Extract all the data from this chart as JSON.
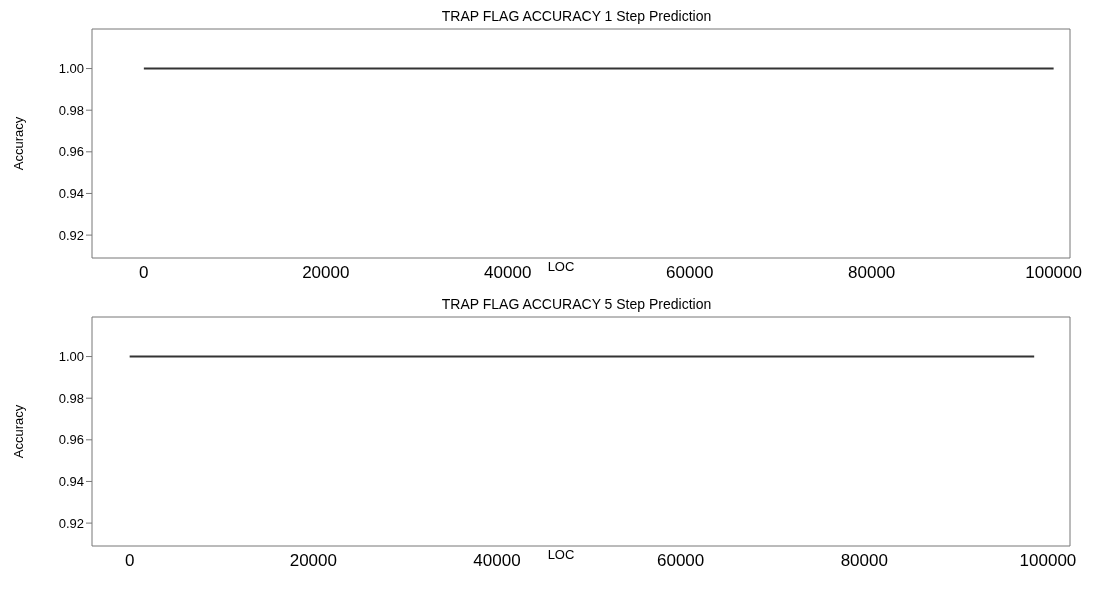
{
  "chart_data": [
    {
      "type": "line",
      "title": "TRAP FLAG ACCURACY 1 Step Prediction",
      "xlabel": "LOC",
      "ylabel": "Accuracy",
      "x": [
        0,
        100000
      ],
      "series": [
        {
          "color": "#333333",
          "values": [
            1.0,
            1.0
          ]
        }
      ],
      "xlim": [
        -5700,
        101800
      ],
      "xticks": [
        0,
        20000,
        40000,
        60000,
        80000,
        100000
      ],
      "ylim": [
        0.909,
        1.019
      ],
      "yticks": [
        {
          "value": 0.92,
          "label": "0.92"
        },
        {
          "value": 0.94,
          "label": "0.94"
        },
        {
          "value": 0.96,
          "label": "0.96"
        },
        {
          "value": 0.98,
          "label": "0.98"
        },
        {
          "value": 1.0,
          "label": "1.00"
        }
      ],
      "grid": false,
      "legend": false,
      "marker": "none",
      "line_style": "solid"
    },
    {
      "type": "line",
      "title": "TRAP FLAG ACCURACY 5 Step Prediction",
      "xlabel": "LOC",
      "ylabel": "Accuracy",
      "x": [
        0,
        98500
      ],
      "series": [
        {
          "color": "#333333",
          "values": [
            1.0,
            1.0
          ]
        }
      ],
      "xlim": [
        -4100,
        102400
      ],
      "xticks": [
        0,
        20000,
        40000,
        60000,
        80000,
        100000
      ],
      "ylim": [
        0.909,
        1.019
      ],
      "yticks": [
        {
          "value": 0.92,
          "label": "0.92"
        },
        {
          "value": 0.94,
          "label": "0.94"
        },
        {
          "value": 0.96,
          "label": "0.96"
        },
        {
          "value": 0.98,
          "label": "0.98"
        },
        {
          "value": 1.0,
          "label": "1.00"
        }
      ],
      "grid": false,
      "legend": false,
      "marker": "none",
      "line_style": "solid"
    }
  ]
}
